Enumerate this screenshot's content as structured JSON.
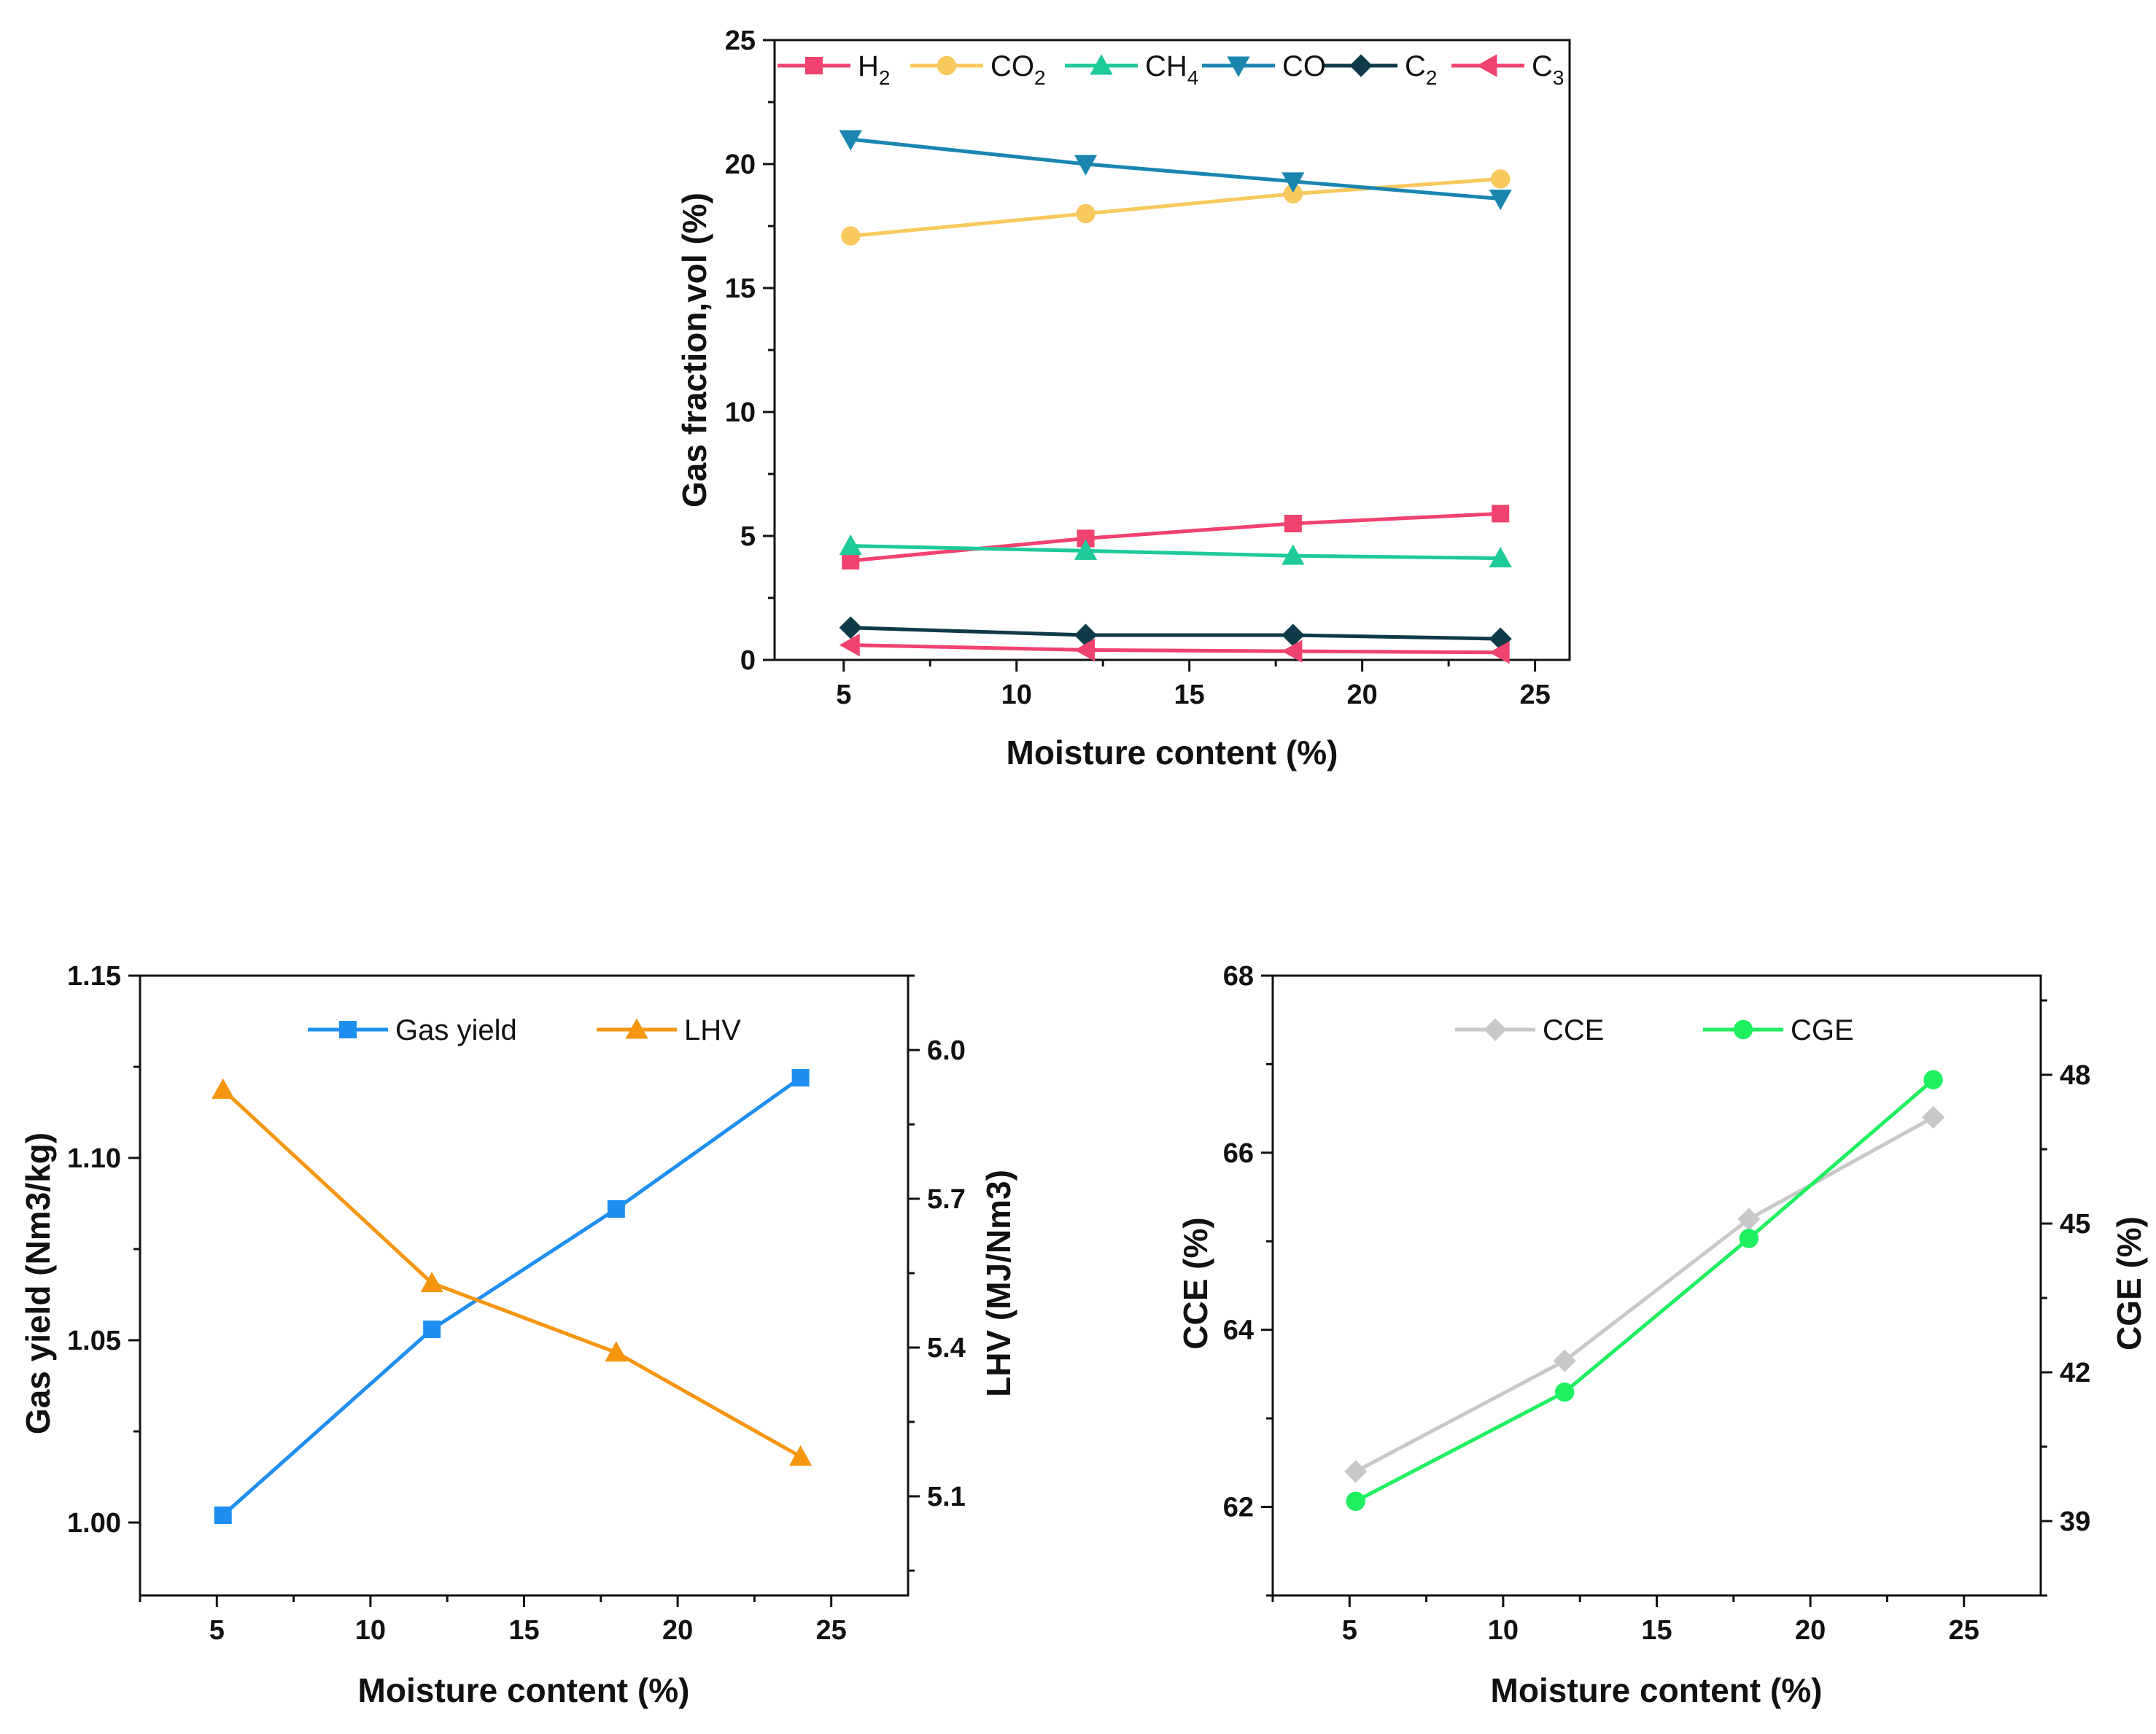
{
  "chart_data": [
    {
      "type": "line",
      "id": "gas-fraction",
      "xlabel": "Moisture content (%)",
      "ylabel": "Gas fraction,vol (%)",
      "xlim": [
        3,
        26
      ],
      "ylim": [
        0,
        25
      ],
      "xticks": [
        "5",
        "10",
        "15",
        "20",
        "25"
      ],
      "yticks": [
        "0",
        "5",
        "10",
        "15",
        "20",
        "25"
      ],
      "x": [
        5.2,
        12,
        18,
        24
      ],
      "legend_position": "top",
      "series": [
        {
          "name": "H",
          "sub": "2",
          "marker": "square",
          "color": "#f0426f",
          "values": [
            4.0,
            4.9,
            5.5,
            5.9
          ]
        },
        {
          "name": "CO",
          "sub": "2",
          "marker": "circle",
          "color": "#f7c95e",
          "values": [
            17.1,
            18.0,
            18.8,
            19.4
          ]
        },
        {
          "name": "CH",
          "sub": "4",
          "marker": "triangle-up",
          "color": "#1ec99a",
          "values": [
            4.6,
            4.4,
            4.2,
            4.1
          ]
        },
        {
          "name": "CO",
          "sub": "",
          "marker": "triangle-down",
          "color": "#1a86b0",
          "values": [
            21.0,
            20.0,
            19.3,
            18.6
          ]
        },
        {
          "name": "C",
          "sub": "2",
          "marker": "diamond",
          "color": "#0f3a4a",
          "values": [
            1.3,
            1.0,
            1.0,
            0.85
          ]
        },
        {
          "name": "C",
          "sub": "3",
          "marker": "triangle-left",
          "color": "#f0426f",
          "values": [
            0.6,
            0.4,
            0.35,
            0.3
          ]
        }
      ]
    },
    {
      "type": "line",
      "id": "gas-yield-lhv",
      "xlabel": "Moisture content (%)",
      "ylabel": "Gas yield (Nm3/kg)",
      "y2label": "LHV (MJ/Nm3)",
      "xlim": [
        2.5,
        27.5
      ],
      "ylim": [
        0.98,
        1.15
      ],
      "y2lim": [
        4.9,
        6.15
      ],
      "xticks": [
        "5",
        "10",
        "15",
        "20",
        "25"
      ],
      "yticks": [
        "1.00",
        "1.05",
        "1.10",
        "1.15"
      ],
      "y2ticks": [
        "5.1",
        "5.4",
        "5.7",
        "6.0"
      ],
      "x": [
        5.2,
        12,
        18,
        24
      ],
      "legend_position": "top",
      "series": [
        {
          "name": "Gas yield",
          "axis": "left",
          "marker": "square",
          "color": "#1e8ff0",
          "values": [
            1.002,
            1.053,
            1.086,
            1.122
          ]
        },
        {
          "name": "LHV",
          "axis": "right",
          "marker": "triangle-up",
          "color": "#f59510",
          "values": [
            5.92,
            5.53,
            5.39,
            5.18
          ]
        }
      ]
    },
    {
      "type": "line",
      "id": "cce-cge",
      "xlabel": "Moisture content (%)",
      "ylabel": "CCE (%)",
      "y2label": "CGE (%)",
      "xlim": [
        2.5,
        27.5
      ],
      "ylim": [
        61,
        68
      ],
      "y2lim": [
        37.5,
        50
      ],
      "xticks": [
        "5",
        "10",
        "15",
        "20",
        "25"
      ],
      "yticks": [
        "62",
        "64",
        "66",
        "68"
      ],
      "y2ticks": [
        "39",
        "42",
        "45",
        "48"
      ],
      "x": [
        5.2,
        12,
        18,
        24
      ],
      "legend_position": "top",
      "series": [
        {
          "name": "CCE",
          "axis": "left",
          "marker": "diamond",
          "color": "#c8c8c8",
          "values": [
            62.4,
            63.65,
            65.25,
            66.4
          ]
        },
        {
          "name": "CGE",
          "axis": "right",
          "marker": "circle",
          "color": "#1ff060",
          "values": [
            39.4,
            41.6,
            44.7,
            47.9
          ]
        }
      ]
    }
  ]
}
